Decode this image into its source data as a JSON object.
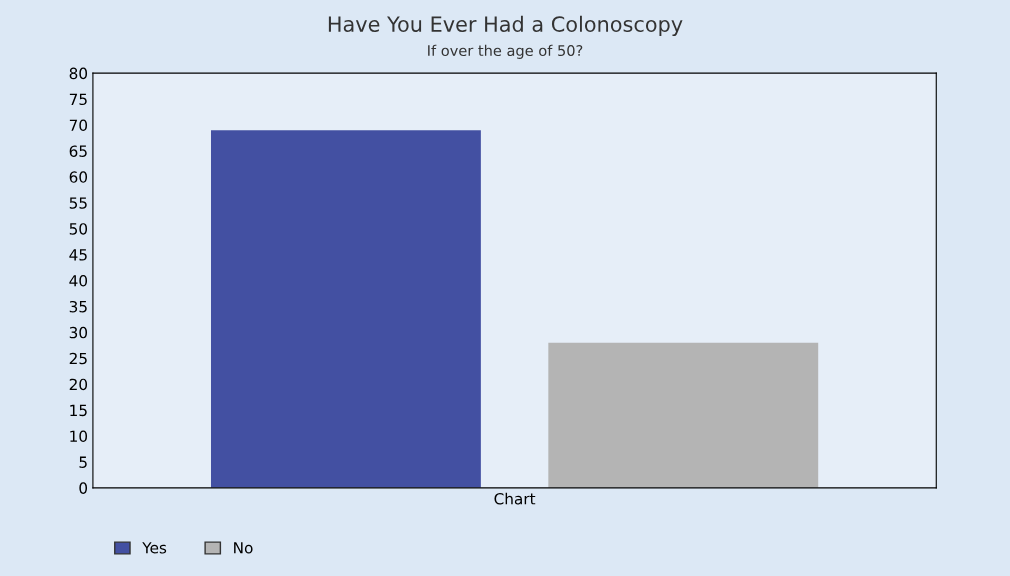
{
  "chart_data": {
    "type": "bar",
    "title": "Have You Ever Had a Colonoscopy",
    "subtitle": "If over the age of 50?",
    "categories": [
      "Chart"
    ],
    "series": [
      {
        "name": "Yes",
        "color": "#4350a2",
        "values": [
          69
        ]
      },
      {
        "name": "No",
        "color": "#b4b4b4",
        "values": [
          28
        ]
      }
    ],
    "ylim": [
      0,
      80
    ],
    "yticks": [
      0,
      5,
      10,
      15,
      20,
      25,
      30,
      35,
      40,
      45,
      50,
      55,
      60,
      65,
      70,
      75,
      80
    ],
    "grid": false,
    "legend": "bottom left"
  }
}
